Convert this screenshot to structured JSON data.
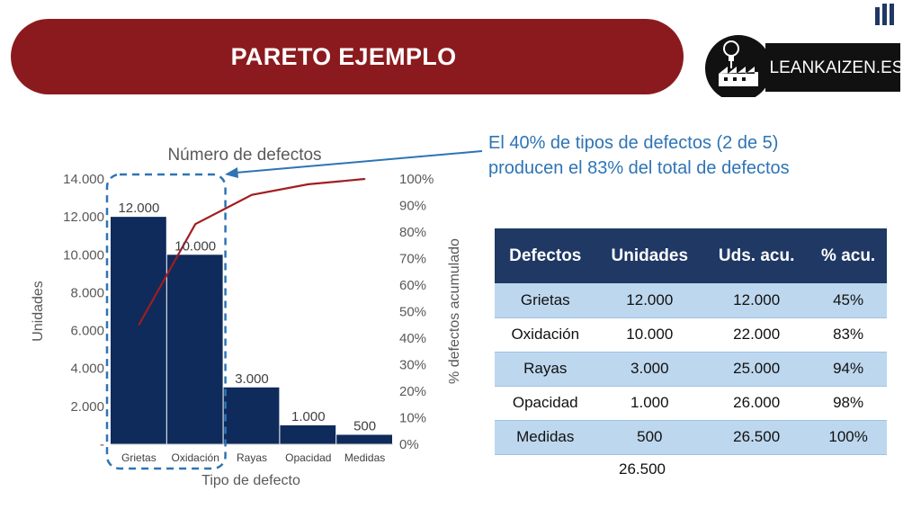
{
  "slide": {
    "title": "PARETO EJEMPLO",
    "logo_text": "LEANKAIZEN.ES",
    "callout_lines": [
      "El 40% de tipos de defectos (2 de 5)",
      "producen el 83% del total de defectos"
    ]
  },
  "colors": {
    "banner": "#8b1a1e",
    "bars": "#0f2b5b",
    "line": "#a11d21",
    "callout": "#2e74b5",
    "table_header": "#1f3864",
    "table_band": "#bdd7ee"
  },
  "chart_data": {
    "type": "bar",
    "title": "Número de defectos",
    "xlabel": "Tipo  de defecto",
    "ylabel": "Unidades",
    "y2label": "% defectos acumulado",
    "categories": [
      "Grietas",
      "Oxidación",
      "Rayas",
      "Opacidad",
      "Medidas"
    ],
    "series": [
      {
        "type": "bar",
        "axis": "left",
        "values": [
          12000,
          10000,
          3000,
          1000,
          500
        ],
        "labels": [
          "12.000",
          "10.000",
          "3.000",
          "1.000",
          "500"
        ]
      },
      {
        "type": "line",
        "axis": "right",
        "values": [
          0.45,
          0.83,
          0.94,
          0.98,
          1.0
        ]
      }
    ],
    "ylim": [
      0,
      14000
    ],
    "y_ticks": [
      0,
      2000,
      4000,
      6000,
      8000,
      10000,
      12000,
      14000
    ],
    "y_tick_labels": [
      "-",
      "2.000",
      "4.000",
      "6.000",
      "8.000",
      "10.000",
      "12.000",
      "14.000"
    ],
    "y2lim": [
      0,
      1
    ],
    "y2_ticks": [
      0,
      0.1,
      0.2,
      0.3,
      0.4,
      0.5,
      0.6,
      0.7,
      0.8,
      0.9,
      1.0
    ],
    "y2_tick_labels": [
      "0%",
      "10%",
      "20%",
      "30%",
      "40%",
      "50%",
      "60%",
      "70%",
      "80%",
      "90%",
      "100%"
    ],
    "grid": false,
    "highlight_categories": [
      "Grietas",
      "Oxidación"
    ]
  },
  "table": {
    "headers": [
      "Defectos",
      "Unidades",
      "Uds. acu.",
      "% acu."
    ],
    "rows": [
      [
        "Grietas",
        "12.000",
        "12.000",
        "45%"
      ],
      [
        "Oxidación",
        "10.000",
        "22.000",
        "83%"
      ],
      [
        "Rayas",
        "3.000",
        "25.000",
        "94%"
      ],
      [
        "Opacidad",
        "1.000",
        "26.000",
        "98%"
      ],
      [
        "Medidas",
        "500",
        "26.500",
        "100%"
      ]
    ],
    "total": "26.500"
  }
}
